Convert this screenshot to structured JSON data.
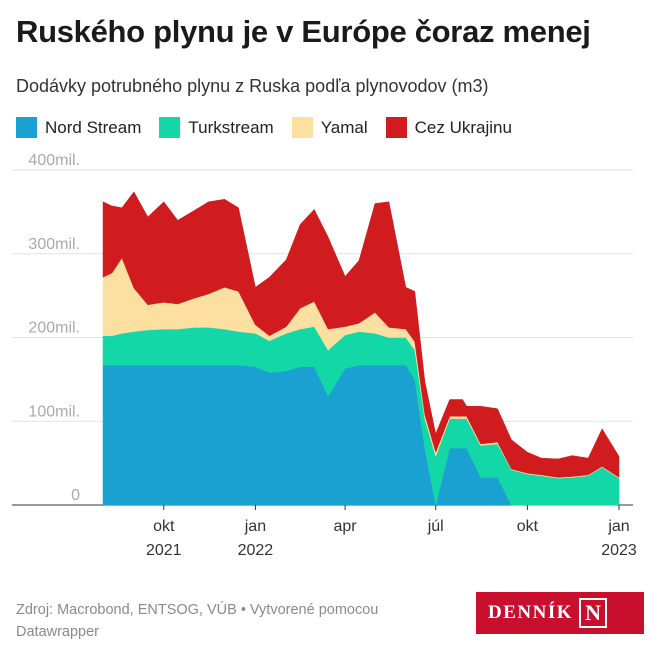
{
  "title": "Ruského plynu je v Európe čoraz menej",
  "subtitle": "Dodávky potrubného plynu z Ruska podľa plynovodov (m3)",
  "footer": {
    "source": "Zdroj: Macrobond, ENTSOG, VÚB • Vytvorené pomocou Datawrapper",
    "logo_text": "DENNÍK",
    "logo_mark": "N"
  },
  "chart_data": {
    "type": "area",
    "stacked": true,
    "title": "Ruského plynu je v Európe čoraz menej",
    "subtitle": "Dodávky potrubného plynu z Ruska podľa plynovodov (m3)",
    "ylabel": "",
    "xlabel": "",
    "ylim": [
      0,
      400
    ],
    "y_unit_label": "mil.",
    "y_ticks": [
      {
        "value": 0,
        "label": "0"
      },
      {
        "value": 100,
        "label": "100mil."
      },
      {
        "value": 200,
        "label": "200mil."
      },
      {
        "value": 300,
        "label": "300mil."
      },
      {
        "value": 400,
        "label": "400mil."
      }
    ],
    "x_range": [
      "2021-08-01",
      "2023-01-10"
    ],
    "x_ticks": [
      {
        "date": "2021-10-01",
        "label": "okt",
        "label2": "2021"
      },
      {
        "date": "2022-01-01",
        "label": "jan",
        "label2": "2022"
      },
      {
        "date": "2022-04-01",
        "label": "apr",
        "label2": ""
      },
      {
        "date": "2022-07-01",
        "label": "júl",
        "label2": ""
      },
      {
        "date": "2022-10-01",
        "label": "okt",
        "label2": ""
      },
      {
        "date": "2023-01-01",
        "label": "jan",
        "label2": "2023"
      }
    ],
    "grid": true,
    "legend_position": "top-left",
    "x": [
      "2021-08-01",
      "2021-08-10",
      "2021-08-20",
      "2021-09-01",
      "2021-09-15",
      "2021-10-01",
      "2021-10-15",
      "2021-11-01",
      "2021-11-15",
      "2021-12-01",
      "2021-12-15",
      "2022-01-01",
      "2022-01-15",
      "2022-02-01",
      "2022-02-15",
      "2022-03-01",
      "2022-03-15",
      "2022-04-01",
      "2022-04-15",
      "2022-05-01",
      "2022-05-15",
      "2022-06-01",
      "2022-06-10",
      "2022-06-20",
      "2022-07-01",
      "2022-07-15",
      "2022-07-28",
      "2022-08-01",
      "2022-08-15",
      "2022-09-01",
      "2022-09-15",
      "2022-10-01",
      "2022-10-15",
      "2022-11-01",
      "2022-11-15",
      "2022-12-01",
      "2022-12-15",
      "2023-01-01"
    ],
    "series": [
      {
        "name": "Nord Stream",
        "color": "#1aa1d1",
        "values": [
          167,
          167,
          167,
          167,
          167,
          167,
          167,
          167,
          167,
          167,
          167,
          165,
          158,
          160,
          165,
          165,
          130,
          163,
          167,
          167,
          167,
          167,
          150,
          68,
          0,
          68,
          68,
          68,
          33,
          33,
          0,
          0,
          0,
          0,
          0,
          0,
          0,
          0
        ]
      },
      {
        "name": "Turkstream",
        "color": "#13d7a7",
        "values": [
          35,
          35,
          38,
          40,
          42,
          43,
          43,
          45,
          45,
          43,
          40,
          40,
          38,
          45,
          45,
          48,
          55,
          40,
          40,
          38,
          33,
          33,
          35,
          35,
          58,
          35,
          35,
          35,
          38,
          40,
          42,
          37,
          35,
          32,
          33,
          35,
          45,
          32
        ]
      },
      {
        "name": "Yamal",
        "color": "#fbe0a1",
        "values": [
          70,
          75,
          90,
          52,
          30,
          32,
          30,
          35,
          40,
          50,
          48,
          10,
          6,
          8,
          25,
          30,
          25,
          10,
          10,
          25,
          12,
          10,
          10,
          5,
          5,
          3,
          3,
          3,
          2,
          2,
          1,
          1,
          1,
          1,
          1,
          1,
          1,
          1
        ]
      },
      {
        "name": "Cez Ukrajinu",
        "color": "#d01c1f",
        "values": [
          90,
          80,
          60,
          115,
          105,
          120,
          100,
          105,
          110,
          105,
          100,
          45,
          70,
          80,
          100,
          110,
          110,
          60,
          75,
          130,
          150,
          50,
          60,
          40,
          22,
          20,
          20,
          12,
          45,
          40,
          35,
          25,
          20,
          22,
          25,
          20,
          45,
          25
        ]
      }
    ]
  }
}
